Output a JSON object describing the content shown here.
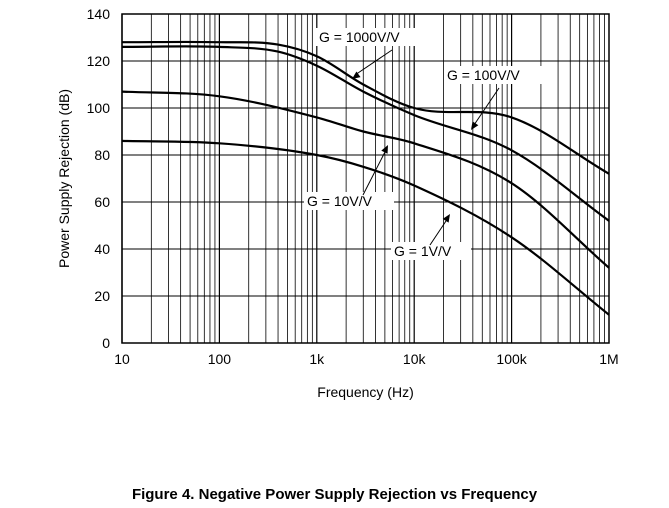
{
  "caption": "Figure 4. Negative Power Supply Rejection vs Frequency",
  "chart_data": {
    "type": "line",
    "xlabel": "Frequency (Hz)",
    "ylabel": "Power Supply Rejection (dB)",
    "xscale": "log",
    "xlim": [
      10,
      1000000
    ],
    "ylim": [
      0,
      140
    ],
    "grid": true,
    "xticks": [
      {
        "value": 10,
        "label": "10"
      },
      {
        "value": 100,
        "label": "100"
      },
      {
        "value": 1000,
        "label": "1k"
      },
      {
        "value": 10000,
        "label": "10k"
      },
      {
        "value": 100000,
        "label": "100k"
      },
      {
        "value": 1000000,
        "label": "1M"
      }
    ],
    "yticks": [
      0,
      20,
      40,
      60,
      80,
      100,
      120,
      140
    ],
    "series": [
      {
        "name": "G = 1000V/V",
        "x": [
          10,
          100,
          400,
          1000,
          3000,
          10000,
          100000,
          1000000
        ],
        "y": [
          128,
          128,
          127,
          122,
          110,
          100,
          96,
          72
        ]
      },
      {
        "name": "G = 100V/V",
        "x": [
          10,
          100,
          400,
          1000,
          3000,
          10000,
          100000,
          1000000
        ],
        "y": [
          126,
          126,
          124,
          118,
          107,
          97,
          82,
          52
        ]
      },
      {
        "name": "G = 10V/V",
        "x": [
          10,
          100,
          1000,
          3000,
          10000,
          100000,
          1000000
        ],
        "y": [
          107,
          105,
          96,
          90,
          85,
          68,
          32
        ]
      },
      {
        "name": "G = 1V/V",
        "x": [
          10,
          100,
          1000,
          3000,
          10000,
          100000,
          1000000
        ],
        "y": [
          86,
          85,
          80,
          75,
          67,
          45,
          12
        ]
      }
    ],
    "annotations": [
      {
        "text": "G = 1000V/V",
        "target_series": 0
      },
      {
        "text": "G = 100V/V",
        "target_series": 1
      },
      {
        "text": "G = 10V/V",
        "target_series": 2
      },
      {
        "text": "G = 1V/V",
        "target_series": 3
      }
    ]
  }
}
